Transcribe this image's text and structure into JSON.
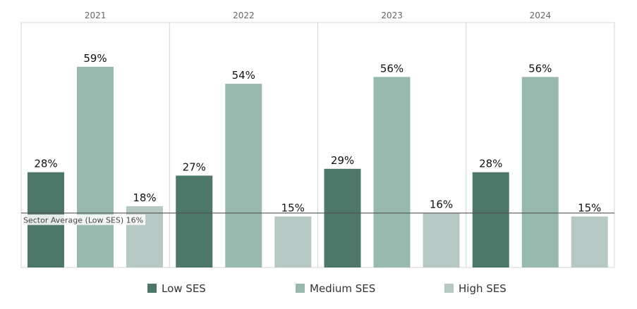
{
  "chart_data": {
    "type": "bar",
    "categories": [
      "2021",
      "2022",
      "2023",
      "2024"
    ],
    "series": [
      {
        "name": "Low SES",
        "values": [
          28,
          27,
          29,
          28
        ],
        "labels": [
          "28%",
          "27%",
          "29%",
          "28%"
        ],
        "color": "#4d7869"
      },
      {
        "name": "Medium SES",
        "values": [
          59,
          54,
          56,
          56
        ],
        "labels": [
          "59%",
          "54%",
          "56%",
          "56%"
        ],
        "color": "#97b8ad"
      },
      {
        "name": "High SES",
        "values": [
          18,
          15,
          16,
          15
        ],
        "labels": [
          "18%",
          "15%",
          "16%",
          "15%"
        ],
        "color": "#b5c8c3"
      }
    ],
    "reference_line": {
      "label": "Sector Average (Low SES) 16%",
      "value": 16
    },
    "ylim": [
      0,
      72
    ],
    "grid": false,
    "legend_position": "bottom",
    "title": "",
    "xlabel": "",
    "ylabel": ""
  }
}
